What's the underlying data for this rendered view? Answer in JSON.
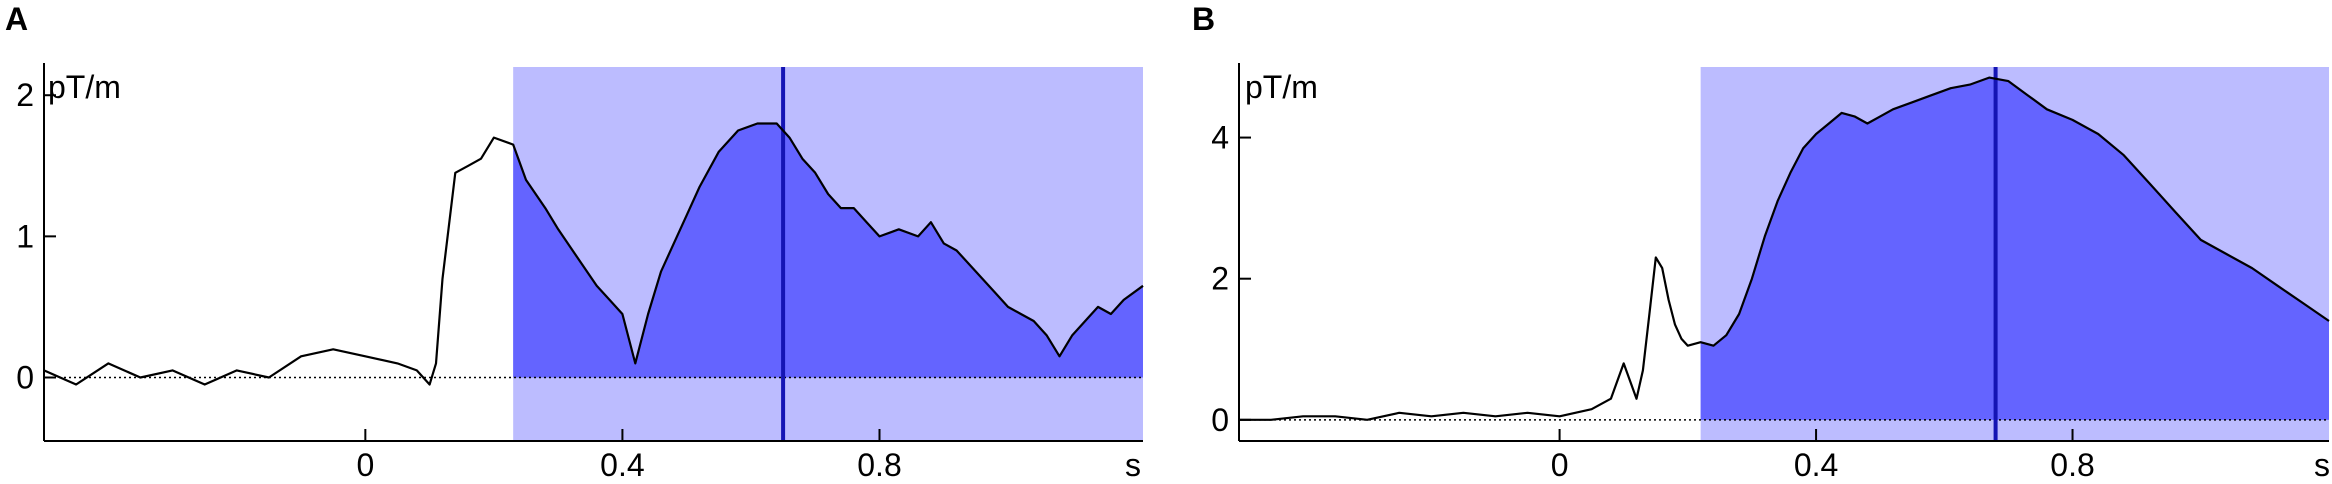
{
  "chart_data": [
    {
      "type": "line",
      "panel_label": "A",
      "unit_label": "pT/m",
      "xlabel": "s",
      "xlim": [
        -0.5,
        1.21
      ],
      "ylim": [
        -0.45,
        2.2
      ],
      "xticks": [
        0,
        0.4,
        0.8
      ],
      "xtick_labels": [
        "0",
        "0.4",
        "0.8"
      ],
      "yticks": [
        0,
        1,
        2
      ],
      "ytick_labels": [
        "0",
        "1",
        "2"
      ],
      "highlight_window": [
        0.23,
        1.21
      ],
      "marker_time": 0.65,
      "colors": {
        "window_light": "#bcbcff",
        "window_fill": "#6464ff",
        "marker": "#1414b4",
        "trace": "#000000"
      },
      "series": [
        {
          "x": [
            -0.5,
            -0.45,
            -0.4,
            -0.35,
            -0.3,
            -0.25,
            -0.2,
            -0.15,
            -0.1,
            -0.05,
            0.0,
            0.05,
            0.08,
            0.1,
            0.11,
            0.12,
            0.14,
            0.16,
            0.18,
            0.2,
            0.23,
            0.25,
            0.28,
            0.3,
            0.33,
            0.36,
            0.38,
            0.4,
            0.42,
            0.44,
            0.46,
            0.48,
            0.5,
            0.52,
            0.55,
            0.58,
            0.61,
            0.64,
            0.66,
            0.68,
            0.7,
            0.72,
            0.74,
            0.76,
            0.78,
            0.8,
            0.83,
            0.86,
            0.88,
            0.9,
            0.92,
            0.95,
            0.98,
            1.0,
            1.02,
            1.04,
            1.06,
            1.08,
            1.1,
            1.12,
            1.14,
            1.16,
            1.18,
            1.21
          ],
          "y": [
            0.05,
            -0.05,
            0.1,
            0.0,
            0.05,
            -0.05,
            0.05,
            0.0,
            0.15,
            0.2,
            0.15,
            0.1,
            0.05,
            -0.05,
            0.1,
            0.7,
            1.45,
            1.5,
            1.55,
            1.7,
            1.65,
            1.4,
            1.2,
            1.05,
            0.85,
            0.65,
            0.55,
            0.45,
            0.1,
            0.45,
            0.75,
            0.95,
            1.15,
            1.35,
            1.6,
            1.75,
            1.8,
            1.8,
            1.7,
            1.55,
            1.45,
            1.3,
            1.2,
            1.2,
            1.1,
            1.0,
            1.05,
            1.0,
            1.1,
            0.95,
            0.9,
            0.75,
            0.6,
            0.5,
            0.45,
            0.4,
            0.3,
            0.15,
            0.3,
            0.4,
            0.5,
            0.45,
            0.55,
            0.65
          ]
        }
      ]
    },
    {
      "type": "line",
      "panel_label": "B",
      "unit_label": "pT/m",
      "xlabel": "s",
      "xlim": [
        -0.5,
        1.2
      ],
      "ylim": [
        -0.3,
        5.0
      ],
      "xticks": [
        0,
        0.4,
        0.8
      ],
      "xtick_labels": [
        "0",
        "0.4",
        "0.8"
      ],
      "yticks": [
        0,
        2,
        4
      ],
      "ytick_labels": [
        "0",
        "2",
        "4"
      ],
      "highlight_window": [
        0.22,
        1.2
      ],
      "marker_time": 0.68,
      "colors": {
        "window_light": "#bcbcff",
        "window_fill": "#6464ff",
        "marker": "#1414b4",
        "trace": "#000000"
      },
      "series": [
        {
          "x": [
            -0.5,
            -0.45,
            -0.4,
            -0.35,
            -0.3,
            -0.25,
            -0.2,
            -0.15,
            -0.1,
            -0.05,
            0.0,
            0.05,
            0.08,
            0.1,
            0.12,
            0.13,
            0.14,
            0.15,
            0.16,
            0.17,
            0.18,
            0.19,
            0.2,
            0.22,
            0.24,
            0.26,
            0.28,
            0.3,
            0.32,
            0.34,
            0.36,
            0.38,
            0.4,
            0.42,
            0.44,
            0.46,
            0.48,
            0.5,
            0.52,
            0.55,
            0.58,
            0.61,
            0.64,
            0.67,
            0.7,
            0.73,
            0.76,
            0.8,
            0.84,
            0.88,
            0.92,
            0.96,
            1.0,
            1.04,
            1.08,
            1.12,
            1.16,
            1.2
          ],
          "y": [
            0.0,
            0.0,
            0.05,
            0.05,
            0.0,
            0.1,
            0.05,
            0.1,
            0.05,
            0.1,
            0.05,
            0.15,
            0.3,
            0.8,
            0.3,
            0.7,
            1.5,
            2.3,
            2.15,
            1.7,
            1.35,
            1.15,
            1.05,
            1.1,
            1.05,
            1.2,
            1.5,
            2.0,
            2.6,
            3.1,
            3.5,
            3.85,
            4.05,
            4.2,
            4.35,
            4.3,
            4.2,
            4.3,
            4.4,
            4.5,
            4.6,
            4.7,
            4.75,
            4.85,
            4.8,
            4.6,
            4.4,
            4.25,
            4.05,
            3.75,
            3.35,
            2.95,
            2.55,
            2.35,
            2.15,
            1.9,
            1.65,
            1.4
          ]
        }
      ]
    }
  ]
}
